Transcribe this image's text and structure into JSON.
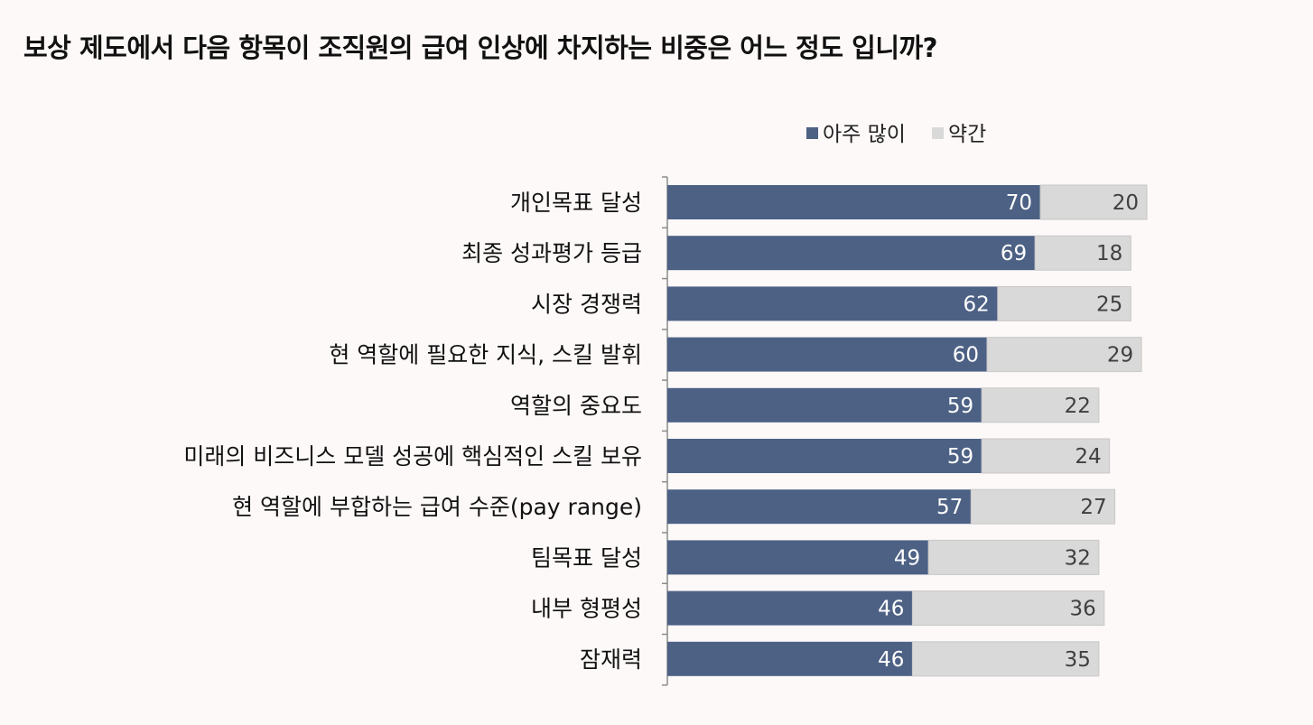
{
  "title": "보상 제도에서 다음 항목이 조직원의 급여 인상에 차지하는 비중은 어느 정도 입니까?",
  "colors": {
    "series_primary": "#4d6185",
    "series_secondary": "#d9d9d9",
    "label_on_primary": "#ffffff",
    "label_on_secondary": "#404040"
  },
  "chart_data": {
    "type": "bar",
    "orientation": "horizontal",
    "stacked": true,
    "title": "보상 제도에서 다음 항목이 조직원의 급여 인상에 차지하는 비중은 어느 정도 입니까?",
    "categories": [
      "개인목표 달성",
      "최종 성과평가 등급",
      "시장 경쟁력",
      "현 역할에 필요한 지식, 스킬 발휘",
      "역할의 중요도",
      "미래의 비즈니스 모델 성공에 핵심적인 스킬 보유",
      "현 역할에 부합하는 급여 수준(pay range)",
      "팀목표 달성",
      "내부 형평성",
      "잠재력"
    ],
    "series": [
      {
        "name": "아주 많이",
        "values": [
          70,
          69,
          62,
          60,
          59,
          59,
          57,
          49,
          46,
          46
        ]
      },
      {
        "name": "약간",
        "values": [
          20,
          18,
          25,
          29,
          22,
          24,
          27,
          32,
          36,
          35
        ]
      }
    ],
    "xlim": [
      0,
      100
    ],
    "grid": false,
    "legend_position": "top-right",
    "data_labels": true
  }
}
